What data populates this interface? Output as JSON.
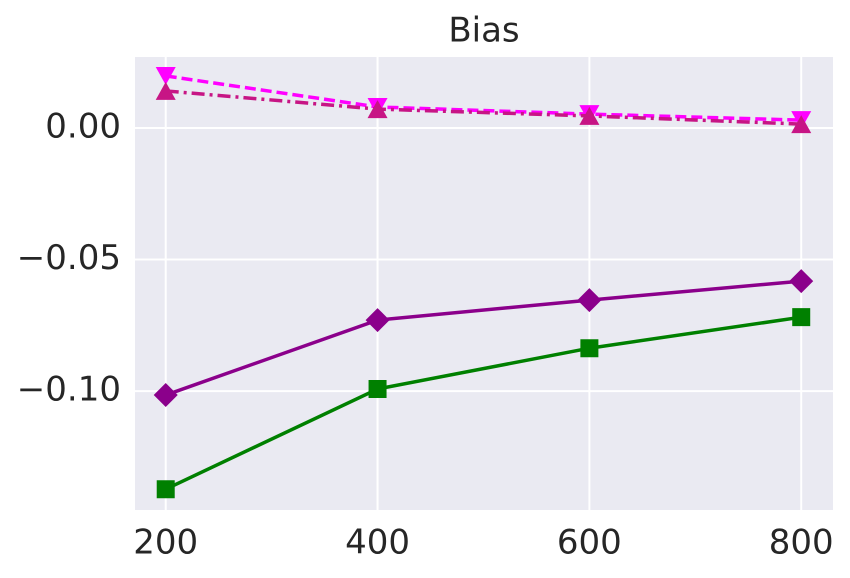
{
  "chart_data": {
    "type": "line",
    "title": "Bias",
    "x": [
      200,
      400,
      600,
      800
    ],
    "series": [
      {
        "color": "#008000",
        "marker": "square",
        "linestyle": "solid",
        "values": [
          -0.1373,
          -0.0992,
          -0.0837,
          -0.0719
        ]
      },
      {
        "color": "#8b008b",
        "marker": "diamond",
        "linestyle": "solid",
        "values": [
          -0.1015,
          -0.073,
          -0.0654,
          -0.0582
        ]
      },
      {
        "color": "#ff00ff",
        "marker": "triangle-down",
        "linestyle": "dashed",
        "values": [
          0.0198,
          0.008,
          0.0053,
          0.003
        ]
      },
      {
        "color": "#c71585",
        "marker": "triangle-up",
        "linestyle": "dashdot",
        "values": [
          0.0141,
          0.0072,
          0.0046,
          0.0015
        ]
      }
    ],
    "xlim": [
      171,
      830
    ],
    "ylim": [
      -0.1452,
      0.027
    ],
    "xticks": [
      200,
      400,
      600,
      800
    ],
    "yticks": [
      {
        "value": -0.1,
        "label": "−0.10"
      },
      {
        "value": -0.05,
        "label": "−0.05"
      },
      {
        "value": 0,
        "label": "0.00"
      }
    ],
    "grid": true
  }
}
